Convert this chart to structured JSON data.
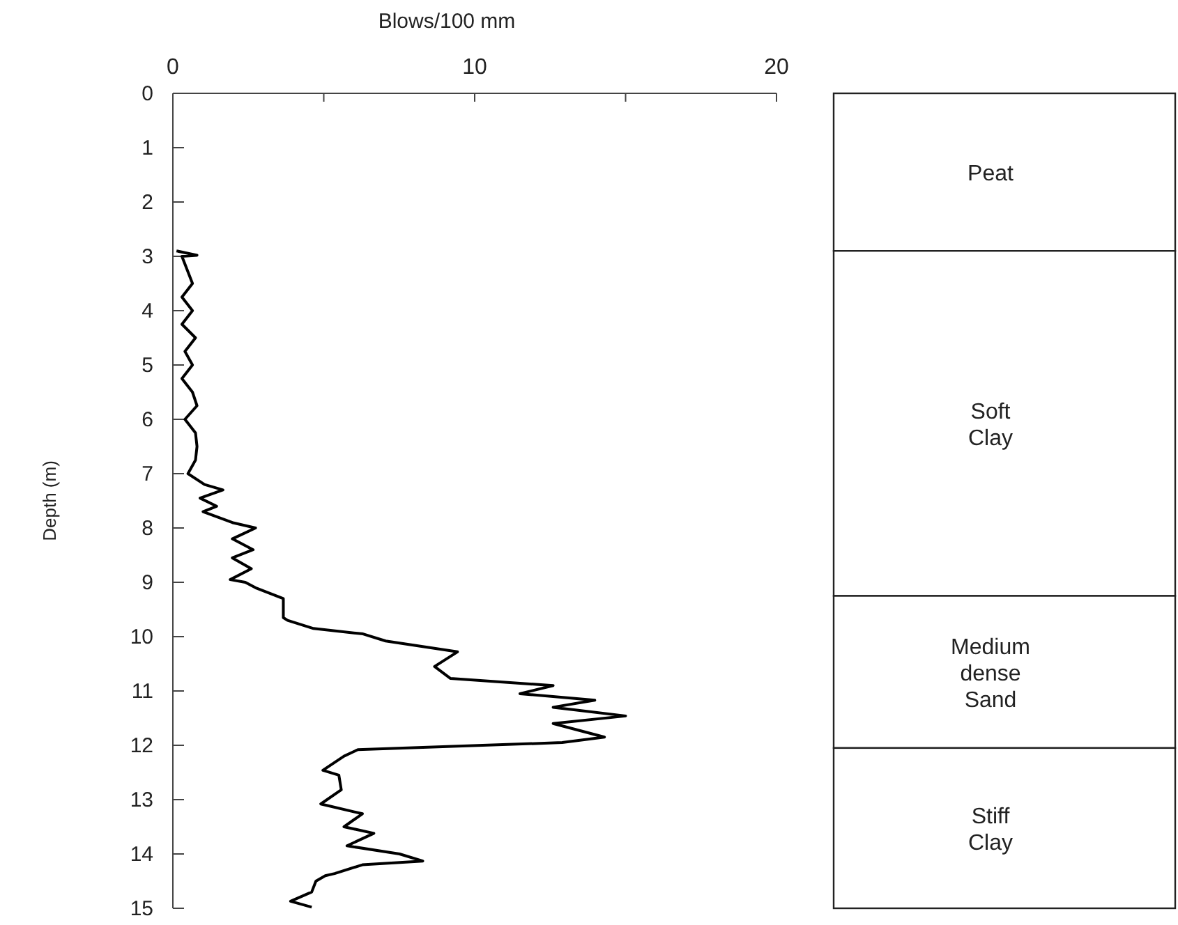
{
  "chart_data": [
    {
      "type": "line",
      "xlabel": "Blows/100 mm",
      "ylabel": "Depth (m)",
      "xlim": [
        0,
        20
      ],
      "xticks": [
        0,
        {
          "value": 5,
          "label": null
        },
        10,
        {
          "value": 15,
          "label": null
        },
        20
      ],
      "ylim": [
        15,
        0
      ],
      "yticks": [
        0,
        1,
        2,
        3,
        4,
        5,
        6,
        7,
        8,
        9,
        10,
        11,
        12,
        13,
        14,
        15
      ],
      "grid": false,
      "marker": "none",
      "line_style": "solid",
      "series": [
        {
          "color": "#000000",
          "x": [
            0.12,
            0.8,
            0.3,
            0.65,
            0.3,
            0.65,
            0.3,
            0.75,
            0.4,
            0.65,
            0.3,
            0.65,
            0.8,
            0.4,
            0.75,
            0.8,
            0.75,
            0.5,
            1.05,
            1.66,
            0.9,
            1.45,
            1.0,
            1.97,
            2.74,
            1.97,
            2.66,
            1.97,
            2.6,
            1.9,
            2.4,
            2.74,
            3.66,
            3.66,
            3.8,
            4.66,
            6.3,
            7.05,
            9.43,
            8.67,
            9.2,
            12.6,
            11.5,
            13.98,
            12.6,
            15.0,
            12.6,
            14.3,
            12.9,
            6.13,
            5.67,
            4.97,
            5.5,
            5.58,
            4.9,
            6.28,
            5.67,
            6.66,
            5.77,
            7.51,
            8.28,
            6.28,
            5.36,
            5.05,
            4.74,
            4.6,
            3.9,
            4.6
          ],
          "values": [
            2.9,
            2.98,
            3.0,
            3.5,
            3.75,
            4.0,
            4.25,
            4.5,
            4.75,
            5.0,
            5.25,
            5.5,
            5.75,
            6.0,
            6.25,
            6.5,
            6.75,
            7.0,
            7.2,
            7.3,
            7.45,
            7.6,
            7.7,
            7.9,
            8.0,
            8.2,
            8.4,
            8.55,
            8.75,
            8.95,
            9.0,
            9.1,
            9.3,
            9.65,
            9.7,
            9.85,
            9.95,
            10.08,
            10.28,
            10.55,
            10.77,
            10.9,
            11.05,
            11.17,
            11.3,
            11.46,
            11.6,
            11.85,
            11.95,
            12.08,
            12.2,
            12.46,
            12.55,
            12.82,
            13.08,
            13.26,
            13.5,
            13.62,
            13.85,
            14.0,
            14.13,
            14.2,
            14.36,
            14.4,
            14.5,
            14.7,
            14.87,
            14.98
          ]
        }
      ]
    },
    {
      "type": "bar",
      "stacked": true,
      "categories": [
        null
      ],
      "ylim": [
        15,
        0
      ],
      "tick_labels": false,
      "series": [
        {
          "name": "Peat",
          "color": "#ffffff",
          "values": [
            2.9
          ]
        },
        {
          "name": "Soft Clay",
          "color": "#ffffff",
          "values": [
            6.35
          ]
        },
        {
          "name": "Medium dense Sand",
          "color": "#ffffff",
          "values": [
            2.8
          ]
        },
        {
          "name": "Stiff Clay",
          "color": "#ffffff",
          "values": [
            2.95
          ]
        }
      ]
    }
  ]
}
